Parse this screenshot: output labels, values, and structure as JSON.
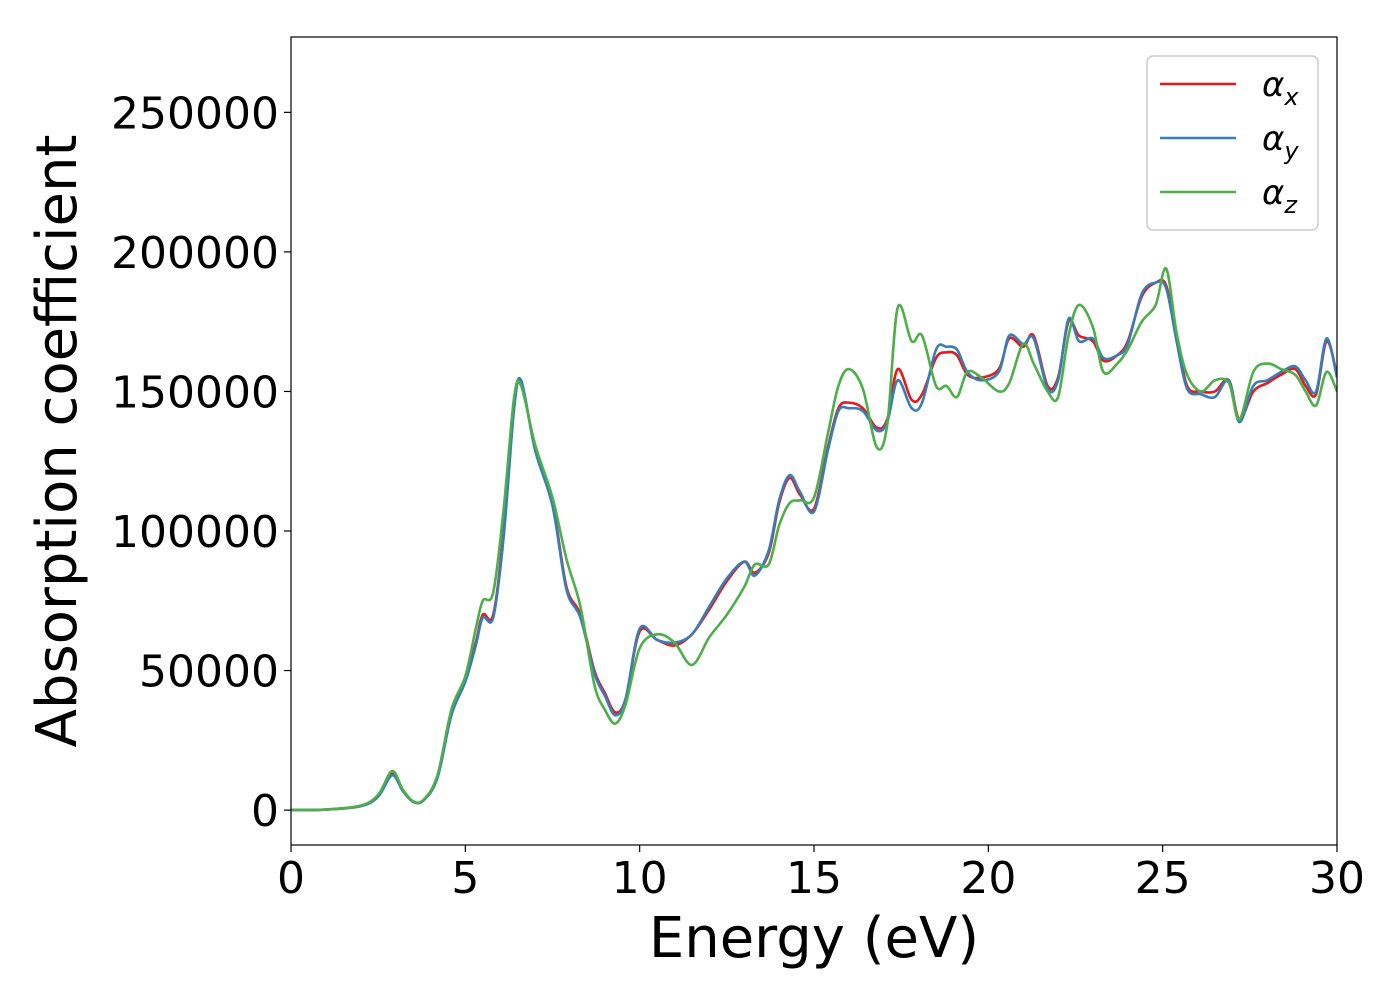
{
  "chart_data": {
    "type": "line",
    "xlabel": "Energy (eV)",
    "ylabel": "Absorption coefficient",
    "xlim": [
      0,
      30
    ],
    "ylim": [
      -12500,
      277000
    ],
    "xticks": [
      "0",
      "5",
      "10",
      "15",
      "20",
      "25",
      "30"
    ],
    "yticks": [
      "0",
      "50000",
      "100000",
      "150000",
      "200000",
      "250000"
    ],
    "grid": false,
    "legend_position": "upper-right",
    "series": [
      {
        "name": "α_x",
        "symbol": "α",
        "subscript": "x",
        "color": "#e41a1c",
        "x": [
          0,
          1,
          2,
          2.5,
          2.9,
          3.2,
          3.5,
          3.8,
          4.2,
          4.6,
          5.0,
          5.3,
          5.5,
          5.8,
          6.1,
          6.4,
          6.6,
          7.0,
          7.5,
          7.9,
          8.3,
          8.7,
          9.0,
          9.3,
          9.6,
          10.0,
          10.5,
          11.0,
          11.5,
          12.0,
          12.5,
          13.0,
          13.3,
          13.7,
          14.0,
          14.3,
          14.6,
          15.0,
          15.4,
          15.7,
          16.0,
          16.4,
          16.8,
          17.1,
          17.4,
          17.8,
          18.1,
          18.5,
          18.8,
          19.1,
          19.4,
          19.8,
          20.3,
          20.6,
          21.0,
          21.3,
          21.7,
          22.0,
          22.3,
          22.6,
          23.0,
          23.3,
          23.7,
          24.0,
          24.4,
          24.8,
          25.1,
          25.4,
          25.7,
          26.1,
          26.5,
          26.9,
          27.2,
          27.6,
          28.0,
          28.4,
          28.8,
          29.1,
          29.4,
          29.7,
          30.0
        ],
        "y": [
          0,
          200,
          1500,
          5000,
          13000,
          7000,
          3000,
          3500,
          12000,
          35000,
          47000,
          60000,
          70000,
          70000,
          100000,
          145000,
          153000,
          130000,
          110000,
          80000,
          70000,
          50000,
          42000,
          35000,
          40000,
          64000,
          61000,
          59000,
          63000,
          72000,
          82000,
          89000,
          85000,
          92000,
          110000,
          119000,
          113000,
          108000,
          130000,
          144000,
          146000,
          144000,
          137000,
          140000,
          158000,
          147000,
          149000,
          162000,
          164000,
          163000,
          156000,
          155000,
          158000,
          169000,
          166000,
          170000,
          152000,
          155000,
          175000,
          170000,
          168000,
          161000,
          163000,
          168000,
          184000,
          189000,
          188000,
          170000,
          152000,
          150000,
          150000,
          154000,
          140000,
          150000,
          153000,
          156000,
          158000,
          152000,
          149000,
          168000,
          156000
        ]
      },
      {
        "name": "α_y",
        "symbol": "α",
        "subscript": "y",
        "color": "#377eb8",
        "x": [
          0,
          1,
          2,
          2.5,
          2.9,
          3.2,
          3.5,
          3.8,
          4.2,
          4.6,
          5.0,
          5.3,
          5.5,
          5.8,
          6.1,
          6.4,
          6.6,
          7.0,
          7.5,
          7.9,
          8.3,
          8.7,
          9.0,
          9.3,
          9.6,
          10.0,
          10.5,
          11.0,
          11.5,
          12.0,
          12.5,
          13.0,
          13.3,
          13.7,
          14.0,
          14.3,
          14.6,
          15.0,
          15.4,
          15.7,
          16.0,
          16.4,
          16.8,
          17.1,
          17.4,
          17.8,
          18.1,
          18.5,
          18.8,
          19.1,
          19.4,
          19.8,
          20.3,
          20.6,
          21.0,
          21.3,
          21.7,
          22.0,
          22.3,
          22.6,
          23.0,
          23.3,
          23.7,
          24.0,
          24.4,
          24.8,
          25.1,
          25.4,
          25.7,
          26.1,
          26.5,
          26.9,
          27.2,
          27.6,
          28.0,
          28.4,
          28.8,
          29.1,
          29.4,
          29.7,
          30.0
        ],
        "y": [
          0,
          200,
          1400,
          4800,
          12500,
          7000,
          3000,
          3500,
          11500,
          34000,
          46000,
          59000,
          69000,
          69000,
          98000,
          144000,
          154000,
          129000,
          109000,
          79000,
          69000,
          49000,
          41000,
          34000,
          40000,
          65000,
          61000,
          60000,
          63000,
          73000,
          83000,
          89000,
          84000,
          93000,
          111000,
          120000,
          114000,
          107000,
          129000,
          143000,
          144000,
          143000,
          136000,
          139000,
          154000,
          144000,
          146000,
          165000,
          166000,
          165000,
          157000,
          154000,
          157000,
          170000,
          167000,
          169000,
          151000,
          154000,
          176000,
          168000,
          169000,
          162000,
          163000,
          167000,
          185000,
          189000,
          187000,
          168000,
          151000,
          149000,
          148000,
          154000,
          139000,
          152000,
          154000,
          157000,
          159000,
          154000,
          150000,
          169000,
          155000
        ]
      },
      {
        "name": "α_z",
        "symbol": "α",
        "subscript": "z",
        "color": "#4daf4a",
        "x": [
          0,
          1,
          2,
          2.5,
          2.9,
          3.2,
          3.5,
          3.8,
          4.2,
          4.6,
          5.0,
          5.3,
          5.5,
          5.8,
          6.1,
          6.4,
          6.6,
          7.0,
          7.5,
          7.9,
          8.3,
          8.7,
          9.0,
          9.3,
          9.6,
          10.0,
          10.5,
          11.0,
          11.5,
          12.0,
          12.5,
          13.0,
          13.3,
          13.7,
          14.0,
          14.3,
          14.6,
          15.0,
          15.4,
          15.7,
          16.0,
          16.4,
          16.8,
          17.1,
          17.4,
          17.8,
          18.1,
          18.5,
          18.8,
          19.1,
          19.4,
          19.8,
          20.3,
          20.6,
          21.0,
          21.3,
          21.7,
          22.0,
          22.3,
          22.6,
          23.0,
          23.3,
          23.7,
          24.0,
          24.4,
          24.8,
          25.1,
          25.4,
          25.7,
          26.1,
          26.5,
          26.9,
          27.2,
          27.6,
          28.0,
          28.4,
          28.8,
          29.1,
          29.4,
          29.7,
          30.0
        ],
        "y": [
          0,
          200,
          1600,
          5500,
          14000,
          7500,
          3200,
          3700,
          12500,
          36000,
          48000,
          65000,
          75000,
          78000,
          108000,
          148000,
          152000,
          131000,
          112000,
          90000,
          73000,
          45000,
          36000,
          31000,
          38000,
          58000,
          63000,
          60000,
          52000,
          62000,
          70000,
          80000,
          88000,
          88000,
          102000,
          110000,
          111000,
          112000,
          135000,
          152000,
          158000,
          151000,
          130000,
          138000,
          180000,
          168000,
          170000,
          152000,
          152000,
          148000,
          157000,
          155000,
          150000,
          153000,
          167000,
          160000,
          150000,
          148000,
          170000,
          181000,
          173000,
          157000,
          160000,
          165000,
          175000,
          181000,
          194000,
          171000,
          156000,
          150000,
          154000,
          153000,
          140000,
          157000,
          160000,
          158000,
          156000,
          150000,
          145000,
          157000,
          150000
        ]
      }
    ]
  }
}
